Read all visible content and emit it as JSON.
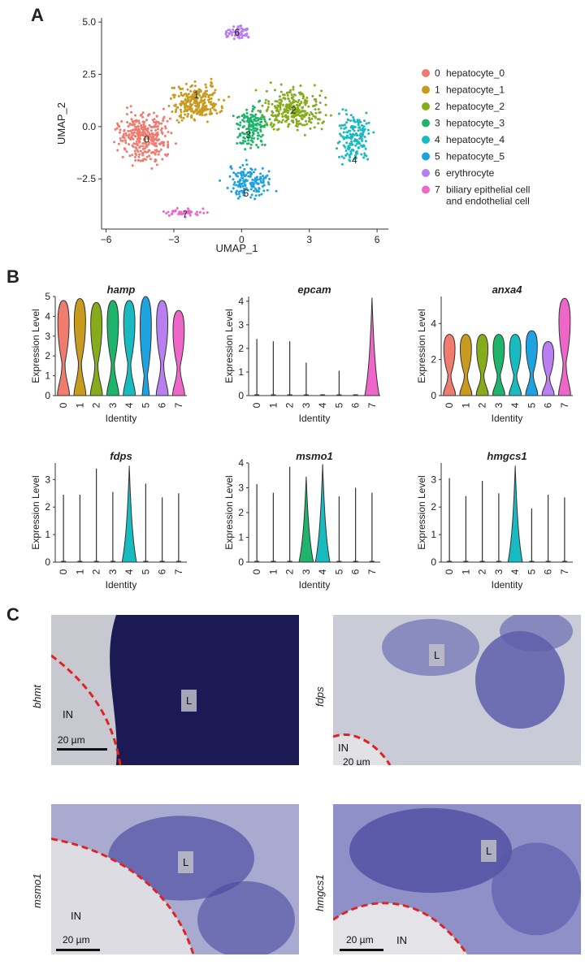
{
  "panels": {
    "a": "A",
    "b": "B",
    "c": "C"
  },
  "umap": {
    "xlabel": "UMAP_1",
    "ylabel": "UMAP_2",
    "xticks": [
      -6,
      -3,
      0,
      3,
      6
    ],
    "yticks": [
      -2.5,
      0.0,
      2.5,
      5.0
    ],
    "xticklabels": [
      "−6",
      "−3",
      "0",
      "3",
      "6"
    ],
    "yticklabels": [
      "−2.5",
      "0.0",
      "2.5",
      "5.0"
    ],
    "cluster_labels": [
      "0",
      "1",
      "2",
      "3",
      "4",
      "5",
      "6",
      "7"
    ]
  },
  "legend": {
    "items": [
      {
        "id": "0",
        "name": "hepatocyte_0",
        "color": "#F07B6F"
      },
      {
        "id": "1",
        "name": "hepatocyte_1",
        "color": "#C89B1E"
      },
      {
        "id": "2",
        "name": "hepatocyte_2",
        "color": "#86AC1C"
      },
      {
        "id": "3",
        "name": "hepatocyte_3",
        "color": "#1FB46C"
      },
      {
        "id": "4",
        "name": "hepatocyte_4",
        "color": "#18BBC0"
      },
      {
        "id": "5",
        "name": "hepatocyte_5",
        "color": "#1FA3E0"
      },
      {
        "id": "6",
        "name": "erythrocyte",
        "color": "#B97EF0"
      },
      {
        "id": "7",
        "name": "biliary epithelial cell",
        "color": "#EE66C8"
      }
    ],
    "item7_line2": "and endothelial cell"
  },
  "violin": {
    "ylabel": "Expression Level",
    "xlabel": "Identity",
    "categories": [
      "0",
      "1",
      "2",
      "3",
      "4",
      "5",
      "6",
      "7"
    ]
  },
  "chart_data": [
    {
      "type": "scatter",
      "chart": "UMAP embedding",
      "xlabel": "UMAP_1",
      "ylabel": "UMAP_2",
      "xlim": [
        -6.2,
        6.5
      ],
      "ylim": [
        -4.9,
        5.2
      ],
      "clusters": [
        {
          "id": "0",
          "name": "hepatocyte_0",
          "center": [
            -4.2,
            -0.6
          ]
        },
        {
          "id": "1",
          "name": "hepatocyte_1",
          "center": [
            -2.0,
            1.5
          ]
        },
        {
          "id": "2",
          "name": "hepatocyte_2",
          "center": [
            2.3,
            0.8
          ]
        },
        {
          "id": "3",
          "name": "hepatocyte_3",
          "center": [
            0.3,
            -0.4
          ]
        },
        {
          "id": "4",
          "name": "hepatocyte_4",
          "center": [
            5.0,
            -1.6
          ]
        },
        {
          "id": "5",
          "name": "hepatocyte_5",
          "center": [
            0.2,
            -3.2
          ]
        },
        {
          "id": "6",
          "name": "erythrocyte",
          "center": [
            -0.2,
            4.5
          ]
        },
        {
          "id": "7",
          "name": "biliary epithelial cell and endothelial cell",
          "center": [
            -2.5,
            -4.2
          ]
        }
      ]
    },
    {
      "type": "violin",
      "title": "hamp",
      "ylim": [
        0,
        5
      ],
      "yticks": [
        0,
        1,
        2,
        3,
        4,
        5
      ],
      "categories": [
        "0",
        "1",
        "2",
        "3",
        "4",
        "5",
        "6",
        "7"
      ],
      "max": [
        4.8,
        4.9,
        4.7,
        4.8,
        4.8,
        5.0,
        4.8,
        4.3
      ],
      "shape": [
        "bimodal",
        "bimodal",
        "bimodal",
        "bimodal",
        "bimodal",
        "top",
        "bimodal",
        "bimodal"
      ]
    },
    {
      "type": "violin",
      "title": "epcam",
      "ylim": [
        0,
        4.2
      ],
      "yticks": [
        0,
        1,
        2,
        3,
        4
      ],
      "categories": [
        "0",
        "1",
        "2",
        "3",
        "4",
        "5",
        "6",
        "7"
      ],
      "max": [
        2.4,
        2.3,
        2.3,
        1.4,
        0.0,
        1.05,
        0.0,
        4.15
      ],
      "shape": [
        "line",
        "line",
        "line",
        "line",
        "flat",
        "line",
        "flat",
        "low"
      ]
    },
    {
      "type": "violin",
      "title": "anxa4",
      "ylim": [
        0,
        5.5
      ],
      "yticks": [
        0,
        2,
        4
      ],
      "categories": [
        "0",
        "1",
        "2",
        "3",
        "4",
        "5",
        "6",
        "7"
      ],
      "max": [
        3.4,
        3.4,
        3.4,
        3.4,
        3.4,
        3.6,
        3.0,
        5.4
      ],
      "shape": [
        "bimodal",
        "bimodal",
        "bimodal",
        "bimodal",
        "bimodal",
        "bimodal",
        "bimodal",
        "bimodal"
      ]
    },
    {
      "type": "violin",
      "title": "fdps",
      "ylim": [
        0,
        3.6
      ],
      "yticks": [
        0,
        1,
        2,
        3
      ],
      "categories": [
        "0",
        "1",
        "2",
        "3",
        "4",
        "5",
        "6",
        "7"
      ],
      "max": [
        2.45,
        2.45,
        3.4,
        2.55,
        3.5,
        2.85,
        2.35,
        2.5
      ],
      "shape": [
        "line",
        "line",
        "line",
        "line",
        "low",
        "line",
        "line",
        "line"
      ]
    },
    {
      "type": "violin",
      "title": "msmo1",
      "ylim": [
        0,
        4.0
      ],
      "yticks": [
        0,
        1,
        2,
        3,
        4
      ],
      "categories": [
        "0",
        "1",
        "2",
        "3",
        "4",
        "5",
        "6",
        "7"
      ],
      "max": [
        3.15,
        2.8,
        3.85,
        3.45,
        3.95,
        2.65,
        3.0,
        2.8
      ],
      "shape": [
        "line",
        "line",
        "line",
        "low",
        "low",
        "line",
        "line",
        "line"
      ]
    },
    {
      "type": "violin",
      "title": "hmgcs1",
      "ylim": [
        0,
        3.6
      ],
      "yticks": [
        0,
        1,
        2,
        3
      ],
      "categories": [
        "0",
        "1",
        "2",
        "3",
        "4",
        "5",
        "6",
        "7"
      ],
      "max": [
        3.05,
        2.4,
        2.95,
        2.5,
        3.5,
        1.95,
        2.45,
        2.35
      ],
      "shape": [
        "line",
        "line",
        "line",
        "line",
        "low",
        "line",
        "line",
        "line"
      ]
    }
  ],
  "micrographs": [
    {
      "gene": "bhmt",
      "box": "L",
      "in": "IN",
      "scale": "20 µm"
    },
    {
      "gene": "fdps",
      "box": "L",
      "in": "IN",
      "scale": "20 µm"
    },
    {
      "gene": "msmo1",
      "box": "L",
      "in": "IN",
      "scale": "20 µm"
    },
    {
      "gene": "hmgcs1",
      "box": "L",
      "in": "IN",
      "scale": "20 µm"
    }
  ]
}
